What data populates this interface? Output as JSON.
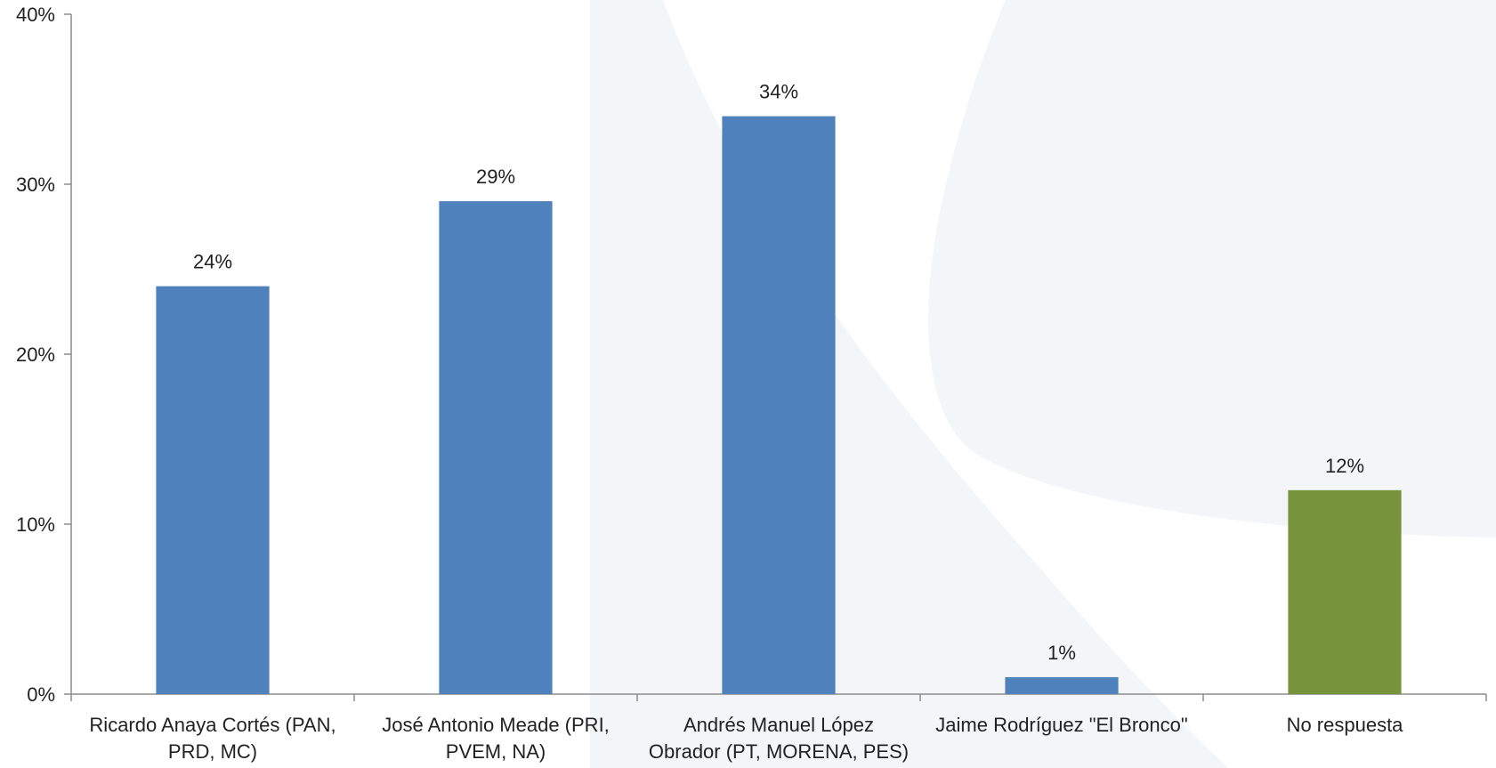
{
  "chart_data": {
    "type": "bar",
    "title": "",
    "xlabel": "",
    "ylabel": "",
    "ylim": [
      0,
      40
    ],
    "yticks": [
      0,
      10,
      20,
      30,
      40
    ],
    "ytick_labels": [
      "0%",
      "10%",
      "20%",
      "30%",
      "40%"
    ],
    "grid": false,
    "categories": [
      [
        "Ricardo Anaya Cortés (PAN,",
        "PRD, MC)"
      ],
      [
        "José Antonio Meade (PRI,",
        "PVEM, NA)"
      ],
      [
        "Andrés Manuel López",
        "Obrador (PT, MORENA, PES)"
      ],
      [
        "Jaime Rodríguez \"El Bronco\""
      ],
      [
        "No respuesta"
      ]
    ],
    "values": [
      24,
      29,
      34,
      1,
      12
    ],
    "data_labels": [
      "24%",
      "29%",
      "34%",
      "1%",
      "12%"
    ],
    "colors": [
      "#4F81BD",
      "#4F81BD",
      "#4F81BD",
      "#4F81BD",
      "#77933C"
    ],
    "axis_color": "#8C8C8C",
    "background_shape_color": "#F3F5F6"
  }
}
